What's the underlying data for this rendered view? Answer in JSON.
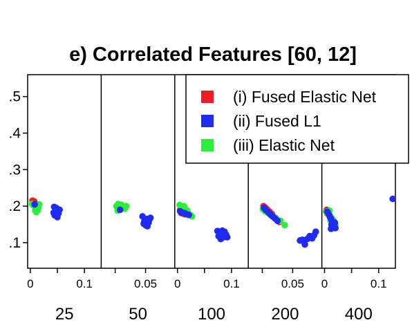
{
  "chart_data": {
    "type": "scatter",
    "title": "e) Correlated Features [60, 12]",
    "xlabel": "",
    "ylabel": "",
    "ylim": [
      0.03,
      0.56
    ],
    "y_ticks": [
      0.1,
      0.2,
      0.3,
      0.4,
      0.5
    ],
    "y_tick_labels": [
      ".1",
      ".2",
      ".3",
      ".4",
      ".5"
    ],
    "legend": {
      "placement": "top-right",
      "entries": [
        {
          "label": "(i) Fused Elastic Net",
          "color": "#ee1c25"
        },
        {
          "label": "(ii) Fused L1",
          "color": "#1f2bf2"
        },
        {
          "label": "(iii) Elastic Net",
          "color": "#2dee3a"
        }
      ]
    },
    "panels": [
      {
        "label": "25",
        "xlim": [
          -0.005,
          0.131
        ],
        "x_ticks": [
          0,
          0.05,
          0.1
        ],
        "x_tick_labels": [
          "0",
          "",
          "0.1"
        ],
        "series": [
          {
            "name": "(i) Fused Elastic Net",
            "points": [
              [
                0.004,
                0.215
              ],
              [
                0.006,
                0.212
              ],
              [
                0.008,
                0.209
              ],
              [
                0.005,
                0.207
              ],
              [
                0.009,
                0.204
              ],
              [
                0.007,
                0.213
              ]
            ]
          },
          {
            "name": "(iii) Elastic Net",
            "points": [
              [
                0.003,
                0.206
              ],
              [
                0.006,
                0.202
              ],
              [
                0.01,
                0.198
              ],
              [
                0.012,
                0.194
              ],
              [
                0.014,
                0.19
              ],
              [
                0.009,
                0.188
              ],
              [
                0.013,
                0.2
              ],
              [
                0.016,
                0.205
              ],
              [
                0.011,
                0.184
              ],
              [
                0.015,
                0.196
              ]
            ]
          },
          {
            "name": "(ii) Fused L1",
            "points": [
              [
                0.008,
                0.205
              ],
              [
                0.044,
                0.198
              ],
              [
                0.05,
                0.192
              ],
              [
                0.046,
                0.186
              ],
              [
                0.052,
                0.18
              ],
              [
                0.045,
                0.175
              ],
              [
                0.05,
                0.17
              ],
              [
                0.043,
                0.182
              ],
              [
                0.054,
                0.19
              ],
              [
                0.048,
                0.195
              ]
            ]
          }
        ]
      },
      {
        "label": "50",
        "xlim": [
          -0.023,
          0.098
        ],
        "x_ticks": [
          0,
          0.05
        ],
        "x_tick_labels": [
          "",
          "0.05"
        ],
        "series": [
          {
            "name": "(iii) Elastic Net",
            "points": [
              [
                0.002,
                0.2
              ],
              [
                0.005,
                0.206
              ],
              [
                0.008,
                0.197
              ],
              [
                0.006,
                0.19
              ],
              [
                0.01,
                0.204
              ],
              [
                0.013,
                0.198
              ],
              [
                0.016,
                0.193
              ],
              [
                0.004,
                0.188
              ],
              [
                0.018,
                0.2
              ]
            ]
          },
          {
            "name": "(ii) Fused L1",
            "points": [
              [
                0.008,
                0.19
              ],
              [
                0.045,
                0.172
              ],
              [
                0.052,
                0.165
              ],
              [
                0.048,
                0.158
              ],
              [
                0.055,
                0.155
              ],
              [
                0.05,
                0.148
              ],
              [
                0.056,
                0.162
              ],
              [
                0.047,
                0.152
              ],
              [
                0.058,
                0.168
              ],
              [
                0.053,
                0.145
              ]
            ]
          }
        ]
      },
      {
        "label": "100",
        "xlim": [
          -0.005,
          0.131
        ],
        "x_ticks": [
          0,
          0.05,
          0.1
        ],
        "x_tick_labels": [
          "0",
          "",
          "0.1"
        ],
        "series": [
          {
            "name": "(i) Fused Elastic Net",
            "points": [
              [
                0.005,
                0.19
              ],
              [
                0.008,
                0.186
              ],
              [
                0.007,
                0.181
              ],
              [
                0.011,
                0.184
              ],
              [
                0.013,
                0.178
              ]
            ]
          },
          {
            "name": "(iii) Elastic Net",
            "points": [
              [
                0.004,
                0.203
              ],
              [
                0.007,
                0.198
              ],
              [
                0.01,
                0.195
              ],
              [
                0.015,
                0.19
              ],
              [
                0.019,
                0.182
              ],
              [
                0.024,
                0.176
              ],
              [
                0.027,
                0.172
              ],
              [
                0.012,
                0.2
              ],
              [
                0.018,
                0.188
              ]
            ]
          },
          {
            "name": "(ii) Fused L1",
            "points": [
              [
                0.005,
                0.186
              ],
              [
                0.009,
                0.182
              ],
              [
                0.013,
                0.181
              ],
              [
                0.017,
                0.178
              ],
              [
                0.021,
                0.176
              ],
              [
                0.074,
                0.132
              ],
              [
                0.078,
                0.126
              ],
              [
                0.082,
                0.12
              ],
              [
                0.085,
                0.115
              ],
              [
                0.08,
                0.11
              ],
              [
                0.087,
                0.13
              ],
              [
                0.09,
                0.122
              ],
              [
                0.076,
                0.118
              ],
              [
                0.092,
                0.115
              ],
              [
                0.083,
                0.133
              ]
            ]
          }
        ]
      },
      {
        "label": "200",
        "xlim": [
          -0.023,
          0.098
        ],
        "x_ticks": [
          0,
          0.05
        ],
        "x_tick_labels": [
          "",
          "0.05"
        ],
        "series": [
          {
            "name": "(i) Fused Elastic Net",
            "points": [
              [
                0.002,
                0.2
              ],
              [
                0.005,
                0.196
              ],
              [
                0.008,
                0.191
              ],
              [
                0.012,
                0.185
              ],
              [
                0.016,
                0.178
              ],
              [
                0.02,
                0.17
              ],
              [
                0.024,
                0.163
              ],
              [
                0.028,
                0.157
              ]
            ]
          },
          {
            "name": "(iii) Elastic Net",
            "points": [
              [
                0.001,
                0.192
              ],
              [
                0.004,
                0.187
              ],
              [
                0.009,
                0.182
              ],
              [
                0.014,
                0.175
              ],
              [
                0.022,
                0.168
              ],
              [
                0.03,
                0.16
              ],
              [
                0.037,
                0.148
              ],
              [
                0.018,
                0.172
              ]
            ]
          },
          {
            "name": "(ii) Fused L1",
            "points": [
              [
                0.003,
                0.195
              ],
              [
                0.006,
                0.189
              ],
              [
                0.01,
                0.183
              ],
              [
                0.013,
                0.178
              ],
              [
                0.017,
                0.172
              ],
              [
                0.021,
                0.166
              ],
              [
                0.025,
                0.16
              ],
              [
                0.062,
                0.106
              ],
              [
                0.066,
                0.108
              ],
              [
                0.07,
                0.095
              ],
              [
                0.074,
                0.11
              ],
              [
                0.078,
                0.118
              ],
              [
                0.082,
                0.112
              ],
              [
                0.085,
                0.12
              ],
              [
                0.088,
                0.13
              ]
            ]
          }
        ]
      },
      {
        "label": "400",
        "xlim": [
          -0.005,
          0.131
        ],
        "x_ticks": [
          0,
          0.05,
          0.1
        ],
        "x_tick_labels": [
          "0",
          "",
          "0.1"
        ],
        "series": [
          {
            "name": "(i) Fused Elastic Net",
            "points": [
              [
                0.004,
                0.19
              ],
              [
                0.007,
                0.185
              ],
              [
                0.005,
                0.18
              ]
            ]
          },
          {
            "name": "(iii) Elastic Net",
            "points": [
              [
                0.003,
                0.185
              ],
              [
                0.006,
                0.18
              ],
              [
                0.01,
                0.174
              ],
              [
                0.013,
                0.168
              ],
              [
                0.016,
                0.162
              ],
              [
                0.018,
                0.156
              ],
              [
                0.02,
                0.148
              ],
              [
                0.014,
                0.152
              ],
              [
                0.011,
                0.16
              ],
              [
                0.017,
                0.145
              ],
              [
                0.009,
                0.188
              ]
            ]
          },
          {
            "name": "(ii) Fused L1",
            "points": [
              [
                0.005,
                0.185
              ],
              [
                0.008,
                0.177
              ],
              [
                0.01,
                0.17
              ],
              [
                0.012,
                0.165
              ],
              [
                0.014,
                0.158
              ],
              [
                0.016,
                0.152
              ],
              [
                0.018,
                0.146
              ],
              [
                0.02,
                0.14
              ],
              [
                0.015,
                0.143
              ],
              [
                0.019,
                0.155
              ],
              [
                0.013,
                0.149
              ],
              [
                0.012,
                0.138
              ],
              [
                0.126,
                0.22
              ]
            ]
          }
        ]
      }
    ]
  }
}
